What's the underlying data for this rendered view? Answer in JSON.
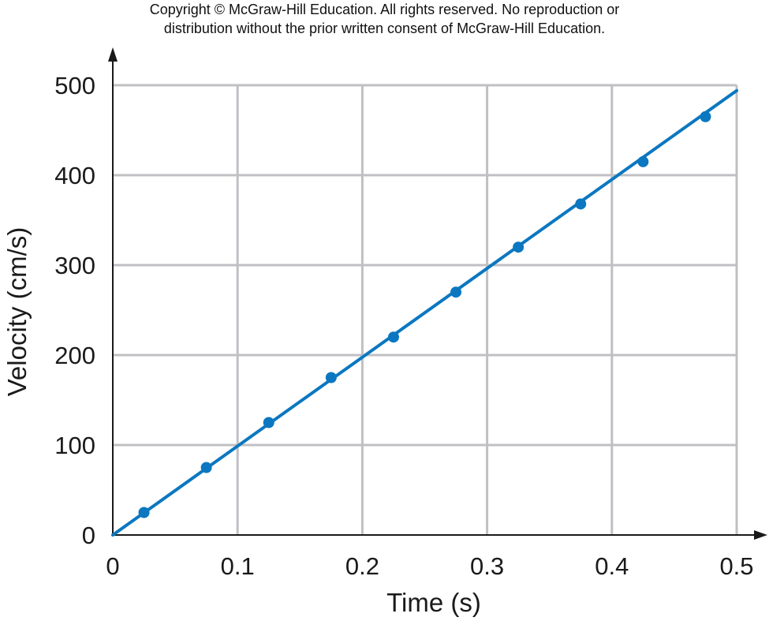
{
  "header": {
    "copyright_line1": "Copyright © McGraw-Hill Education.  All rights reserved. No reproduction or",
    "copyright_line2": "distribution without the prior written consent of McGraw-Hill Education."
  },
  "chart_data": {
    "type": "scatter",
    "title": "",
    "xlabel": "Time (s)",
    "ylabel": "Velocity (cm/s)",
    "xlim": [
      0,
      0.5
    ],
    "ylim": [
      0,
      500
    ],
    "xticks": [
      0,
      0.1,
      0.2,
      0.3,
      0.4,
      0.5
    ],
    "xtick_labels": [
      "0",
      "0.1",
      "0.2",
      "0.3",
      "0.4",
      "0.5"
    ],
    "yticks": [
      0,
      100,
      200,
      300,
      400,
      500
    ],
    "ytick_labels": [
      "0",
      "100",
      "200",
      "300",
      "400",
      "500"
    ],
    "grid": true,
    "series": [
      {
        "x": [
          0.025,
          0.075,
          0.125,
          0.175,
          0.225,
          0.275,
          0.325,
          0.375,
          0.425,
          0.475
        ],
        "y": [
          25,
          75,
          125,
          175,
          220,
          270,
          320,
          368,
          415,
          465
        ]
      }
    ],
    "fit_line": {
      "x": [
        0,
        0.5
      ],
      "y": [
        0,
        494
      ]
    },
    "colors": {
      "series": "#0b77c0",
      "grid": "#c0c0c4",
      "axis": "#1a1a1a"
    }
  }
}
